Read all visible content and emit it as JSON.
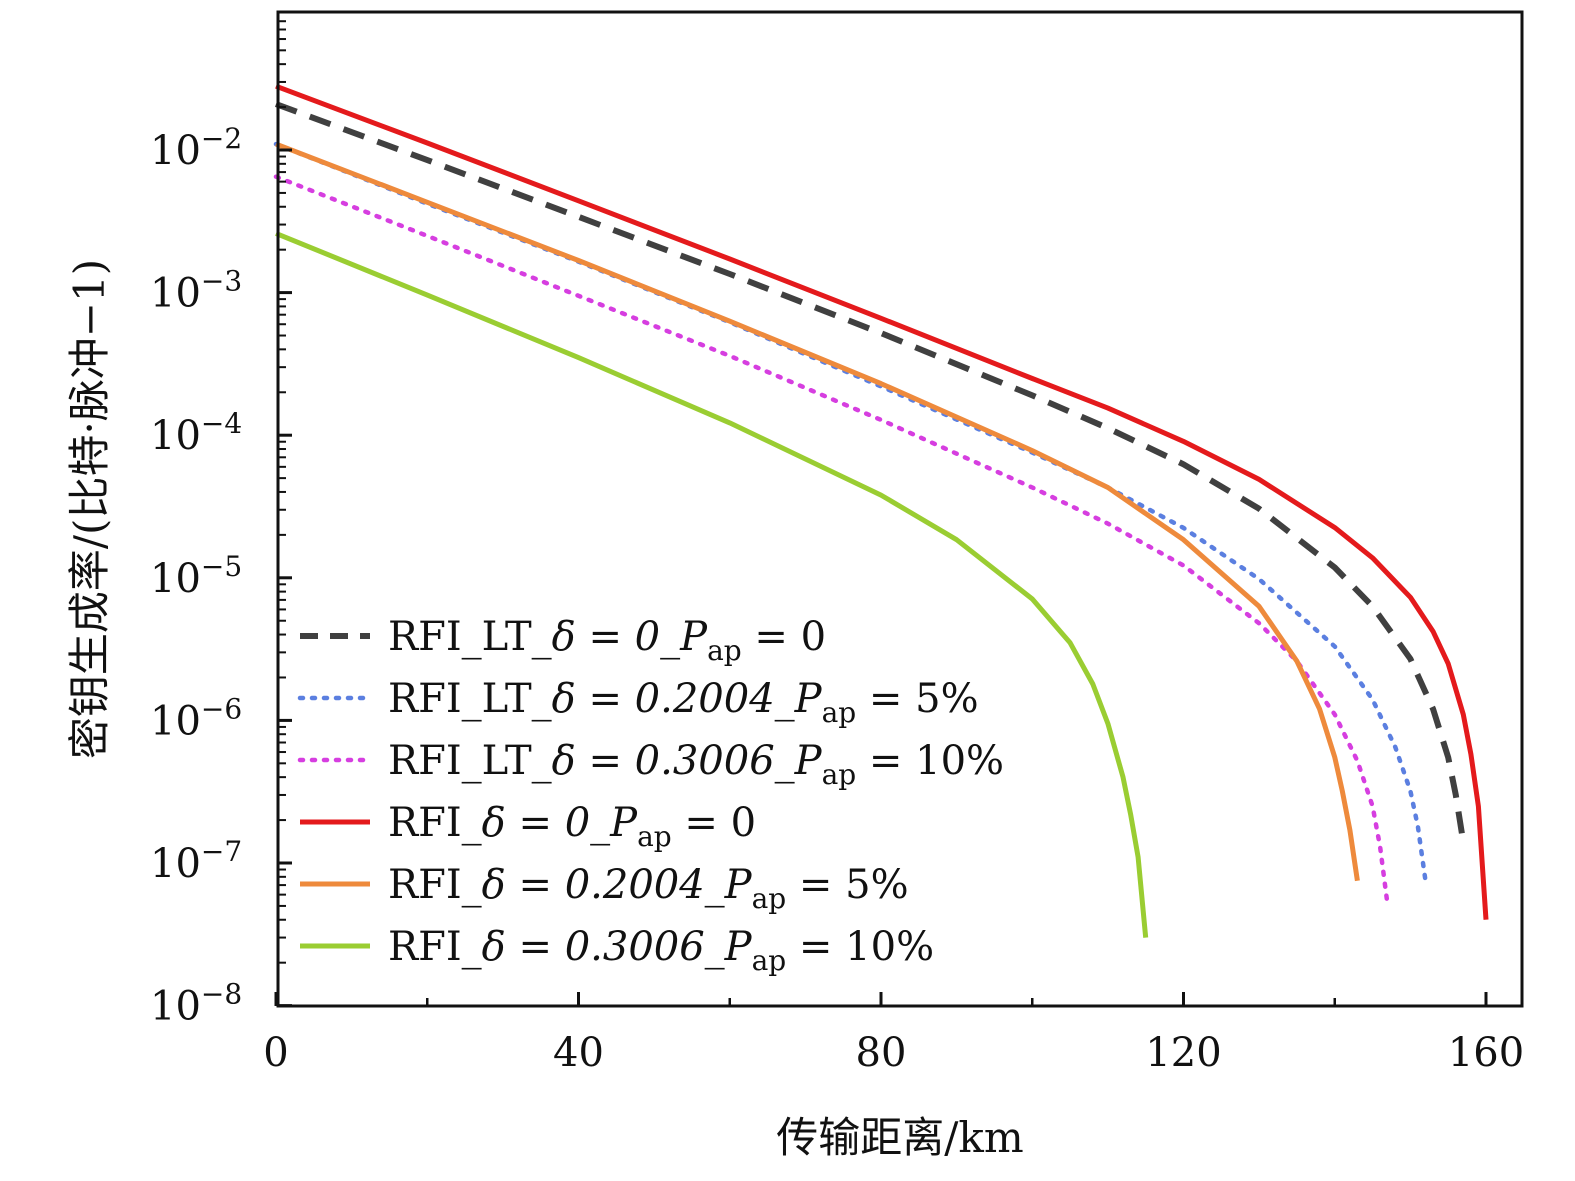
{
  "chart_data": {
    "type": "line",
    "xlabel": "传输距离/km",
    "ylabel": "密钥生成率/(比特·脉冲−1)",
    "xlim": [
      0,
      165
    ],
    "ylim_exponent": [
      -8,
      -1
    ],
    "y_scale": "log",
    "x_ticks": [
      "0",
      "40",
      "80",
      "120",
      "160"
    ],
    "y_ticks": [
      {
        "base": "10",
        "exp": "−8"
      },
      {
        "base": "10",
        "exp": "−7"
      },
      {
        "base": "10",
        "exp": "−6"
      },
      {
        "base": "10",
        "exp": "−5"
      },
      {
        "base": "10",
        "exp": "−4"
      },
      {
        "base": "10",
        "exp": "−3"
      },
      {
        "base": "10",
        "exp": "−2"
      }
    ],
    "legend_placement": "lower-left",
    "series": [
      {
        "name": "RFI_LT_δ = 0_Pap = 0",
        "legend_main": "RFI_LT_",
        "legend_delta": "δ = 0_",
        "legend_p": "P",
        "legend_sub": "ap",
        "legend_tail": " = 0",
        "color": "#404040",
        "style": "dashed",
        "x": [
          0,
          20,
          40,
          60,
          80,
          100,
          110,
          120,
          130,
          140,
          145,
          150,
          153,
          155,
          156,
          157
        ],
        "y": [
          0.021,
          0.0085,
          0.0034,
          0.00135,
          0.00052,
          0.00019,
          0.000112,
          6.25e-05,
          3.05e-05,
          1.18e-05,
          6.3e-06,
          2.7e-06,
          1.2e-06,
          5.5e-07,
          3e-07,
          1.4e-07
        ]
      },
      {
        "name": "RFI_LT_δ = 0.2004_Pap = 5%",
        "legend_main": "RFI_LT_",
        "legend_delta": "δ = 0.2004_",
        "legend_p": "P",
        "legend_sub": "ap",
        "legend_tail": " = 5%",
        "color": "#5b7fe0",
        "style": "dotted",
        "x": [
          0,
          20,
          40,
          60,
          80,
          100,
          110,
          120,
          130,
          140,
          145,
          148,
          150,
          151,
          152
        ],
        "y": [
          0.011,
          0.0042,
          0.00165,
          0.00062,
          0.00022,
          7.55e-05,
          4.3e-05,
          2.24e-05,
          9.8e-06,
          3.3e-06,
          1.4e-06,
          6.5e-07,
          3.2e-07,
          1.8e-07,
          7.5e-08
        ]
      },
      {
        "name": "RFI_LT_δ = 0.3006_Pap = 10%",
        "legend_main": "RFI_LT_",
        "legend_delta": "δ = 0.3006_",
        "legend_p": "P",
        "legend_sub": "ap",
        "legend_tail": " = 10%",
        "color": "#d63ee0",
        "style": "dotted",
        "x": [
          0,
          20,
          40,
          60,
          80,
          100,
          110,
          120,
          130,
          135,
          140,
          143,
          145,
          146,
          147
        ],
        "y": [
          0.0065,
          0.0025,
          0.00095,
          0.00036,
          0.000128,
          4.3e-05,
          2.4e-05,
          1.22e-05,
          4.8e-06,
          2.6e-06,
          1.1e-06,
          5.2e-07,
          2.5e-07,
          1.3e-07,
          5e-08
        ]
      },
      {
        "name": "RFI_δ = 0_Pap = 0",
        "legend_main": "RFI_",
        "legend_delta": "δ = 0_",
        "legend_p": "P",
        "legend_sub": "ap",
        "legend_tail": " = 0",
        "color": "#e41a1c",
        "style": "solid",
        "x": [
          0,
          20,
          40,
          60,
          80,
          100,
          110,
          120,
          130,
          140,
          145,
          150,
          153,
          155,
          157,
          158,
          159,
          160
        ],
        "y": [
          0.028,
          0.0112,
          0.0044,
          0.00172,
          0.00066,
          0.00025,
          0.000155,
          9.05e-05,
          4.9e-05,
          2.25e-05,
          1.38e-05,
          7.3e-06,
          4.2e-06,
          2.5e-06,
          1.1e-06,
          5.8e-07,
          2.5e-07,
          4e-08
        ]
      },
      {
        "name": "RFI_δ = 0.2004_Pap = 5%",
        "legend_main": "RFI_",
        "legend_delta": "δ = 0.2004_",
        "legend_p": "P",
        "legend_sub": "ap",
        "legend_tail": " = 5%",
        "color": "#ee8a3c",
        "style": "solid",
        "x": [
          0,
          20,
          40,
          60,
          80,
          100,
          110,
          120,
          130,
          135,
          138,
          140,
          141,
          142,
          143
        ],
        "y": [
          0.011,
          0.0043,
          0.00168,
          0.00063,
          0.00023,
          7.8e-05,
          4.3e-05,
          1.85e-05,
          6.3e-06,
          2.6e-06,
          1.2e-06,
          5.5e-07,
          3.2e-07,
          1.7e-07,
          7.5e-08
        ]
      },
      {
        "name": "RFI_δ = 0.3006_Pap = 10%",
        "legend_main": "RFI_",
        "legend_delta": "δ = 0.3006_",
        "legend_p": "P",
        "legend_sub": "ap",
        "legend_tail": " = 10%",
        "color": "#9acd32",
        "style": "solid",
        "x": [
          0,
          20,
          40,
          60,
          80,
          90,
          100,
          105,
          108,
          110,
          112,
          113,
          114,
          115
        ],
        "y": [
          0.0026,
          0.00096,
          0.00035,
          0.000122,
          3.8e-05,
          1.85e-05,
          7.1e-06,
          3.5e-06,
          1.8e-06,
          9.5e-07,
          4e-07,
          2.2e-07,
          1.1e-07,
          3e-08
        ]
      }
    ]
  }
}
